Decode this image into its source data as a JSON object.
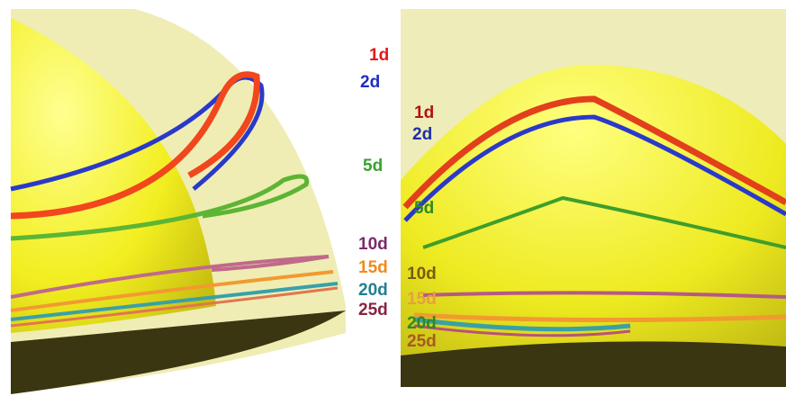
{
  "left_labels": [
    "1d",
    "2d",
    "5d",
    "10d",
    "15d",
    "20d",
    "25d"
  ],
  "right_labels": [
    "1d",
    "2d",
    "5d",
    "10d",
    "15d",
    "20d",
    "25d"
  ]
}
